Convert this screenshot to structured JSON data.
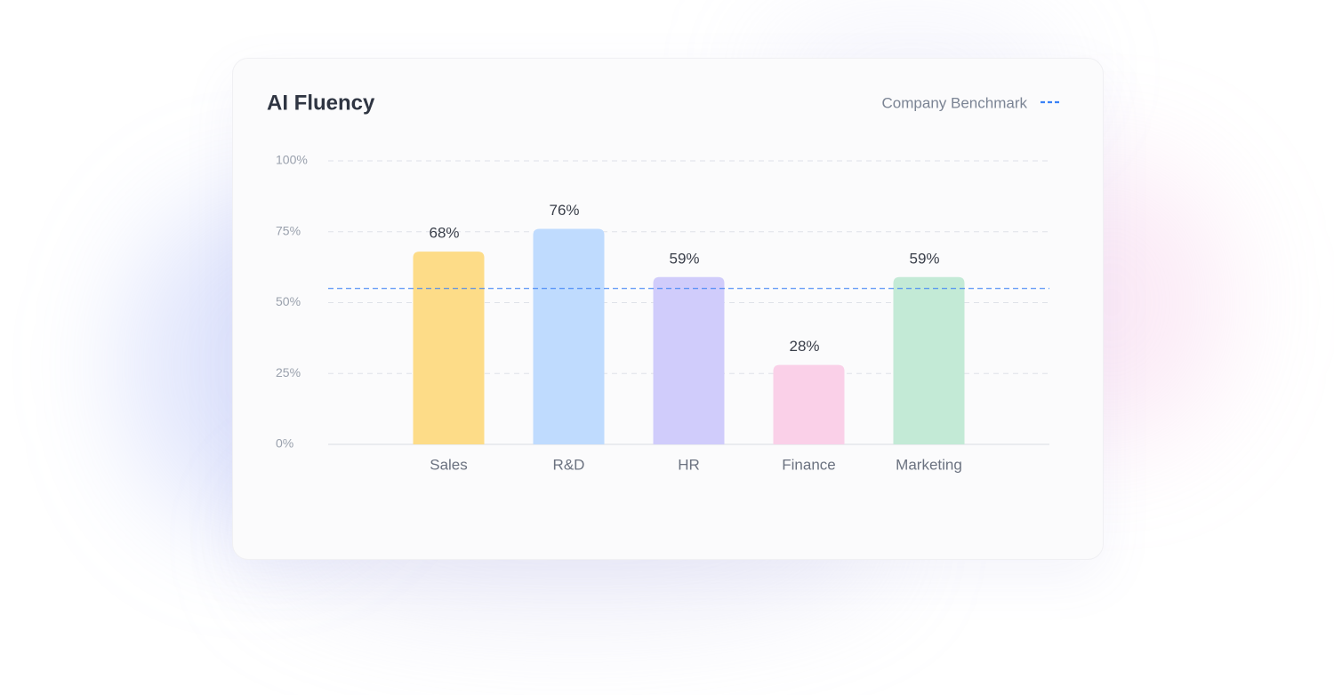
{
  "chart_data": {
    "type": "bar",
    "title": "AI Fluency",
    "categories": [
      "Sales",
      "R&D",
      "HR",
      "Finance",
      "Marketing"
    ],
    "values": [
      68,
      76,
      59,
      28,
      59
    ],
    "value_labels": [
      "68%",
      "76%",
      "59%",
      "28%",
      "59%"
    ],
    "colors": [
      "#fddc88",
      "#bfdbfe",
      "#d0ccfb",
      "#fad0e8",
      "#c3ead6"
    ],
    "ylim": [
      0,
      100
    ],
    "yticks": [
      {
        "value": 0,
        "label": "0%"
      },
      {
        "value": 25,
        "label": "25%"
      },
      {
        "value": 50,
        "label": "50%"
      },
      {
        "value": 75,
        "label": "75%"
      },
      {
        "value": 100,
        "label": "100%"
      }
    ],
    "grid": true,
    "benchmark": {
      "name": "Company Benchmark",
      "value": 55,
      "color": "#3b82f6"
    },
    "legend": "top-right"
  }
}
